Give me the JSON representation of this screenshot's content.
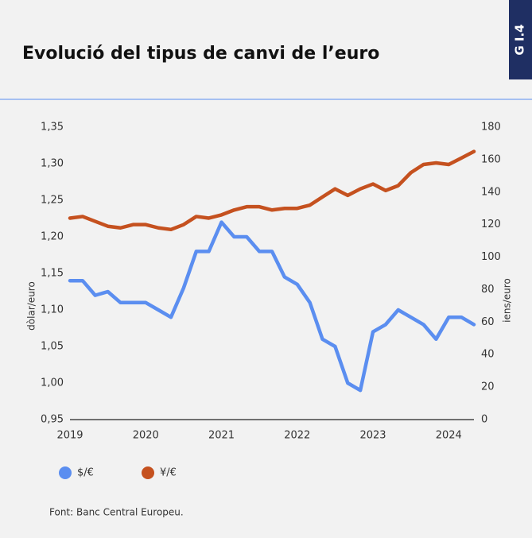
{
  "chart_data": {
    "type": "line",
    "tag": "G I.4",
    "title": "Evolució del tipus de canvi de l’euro",
    "ylabel": "dòlar/euro",
    "y2label": "iens/euro",
    "source": "Font: Banc Central Europeu.",
    "x": [
      2019,
      2019.167,
      2019.333,
      2019.5,
      2019.667,
      2019.833,
      2020,
      2020.167,
      2020.333,
      2020.5,
      2020.667,
      2020.833,
      2021,
      2021.167,
      2021.333,
      2021.5,
      2021.667,
      2021.833,
      2022,
      2022.167,
      2022.333,
      2022.5,
      2022.667,
      2022.833,
      2023,
      2023.167,
      2023.333,
      2023.5,
      2023.667,
      2023.833,
      2024,
      2024.167,
      2024.333
    ],
    "series": [
      {
        "name": "$/€",
        "color": "#5b8ef0",
        "axis": "y",
        "values": [
          1.14,
          1.14,
          1.12,
          1.125,
          1.11,
          1.11,
          1.11,
          1.1,
          1.09,
          1.13,
          1.18,
          1.18,
          1.22,
          1.2,
          1.2,
          1.18,
          1.18,
          1.145,
          1.135,
          1.11,
          1.06,
          1.05,
          1.0,
          0.99,
          1.07,
          1.08,
          1.1,
          1.09,
          1.08,
          1.06,
          1.09,
          1.09,
          1.08
        ]
      },
      {
        "name": "¥/€",
        "color": "#c5511f",
        "axis": "y2",
        "values": [
          124,
          125,
          122,
          119,
          118,
          120,
          120,
          118,
          117,
          120,
          125,
          124,
          126,
          129,
          131,
          131,
          129,
          130,
          130,
          132,
          137,
          142,
          138,
          142,
          145,
          141,
          144,
          152,
          157,
          158,
          157,
          161,
          165
        ]
      }
    ],
    "xlim": [
      2019,
      2024.333
    ],
    "xticks": [
      2019,
      2020,
      2021,
      2022,
      2023,
      2024
    ],
    "ylim": [
      0.95,
      1.35
    ],
    "yticks": [
      {
        "value": 0.95,
        "label": "0,95"
      },
      {
        "value": 1.0,
        "label": "1,00"
      },
      {
        "value": 1.05,
        "label": "1,05"
      },
      {
        "value": 1.1,
        "label": "1,10"
      },
      {
        "value": 1.15,
        "label": "1,15"
      },
      {
        "value": 1.2,
        "label": "1,20"
      },
      {
        "value": 1.25,
        "label": "1,25"
      },
      {
        "value": 1.3,
        "label": "1,30"
      },
      {
        "value": 1.35,
        "label": "1,35"
      }
    ],
    "y2lim": [
      0,
      180
    ],
    "y2ticks": [
      0,
      20,
      40,
      60,
      80,
      100,
      120,
      140,
      160,
      180
    ],
    "legend": "bottom-left"
  }
}
